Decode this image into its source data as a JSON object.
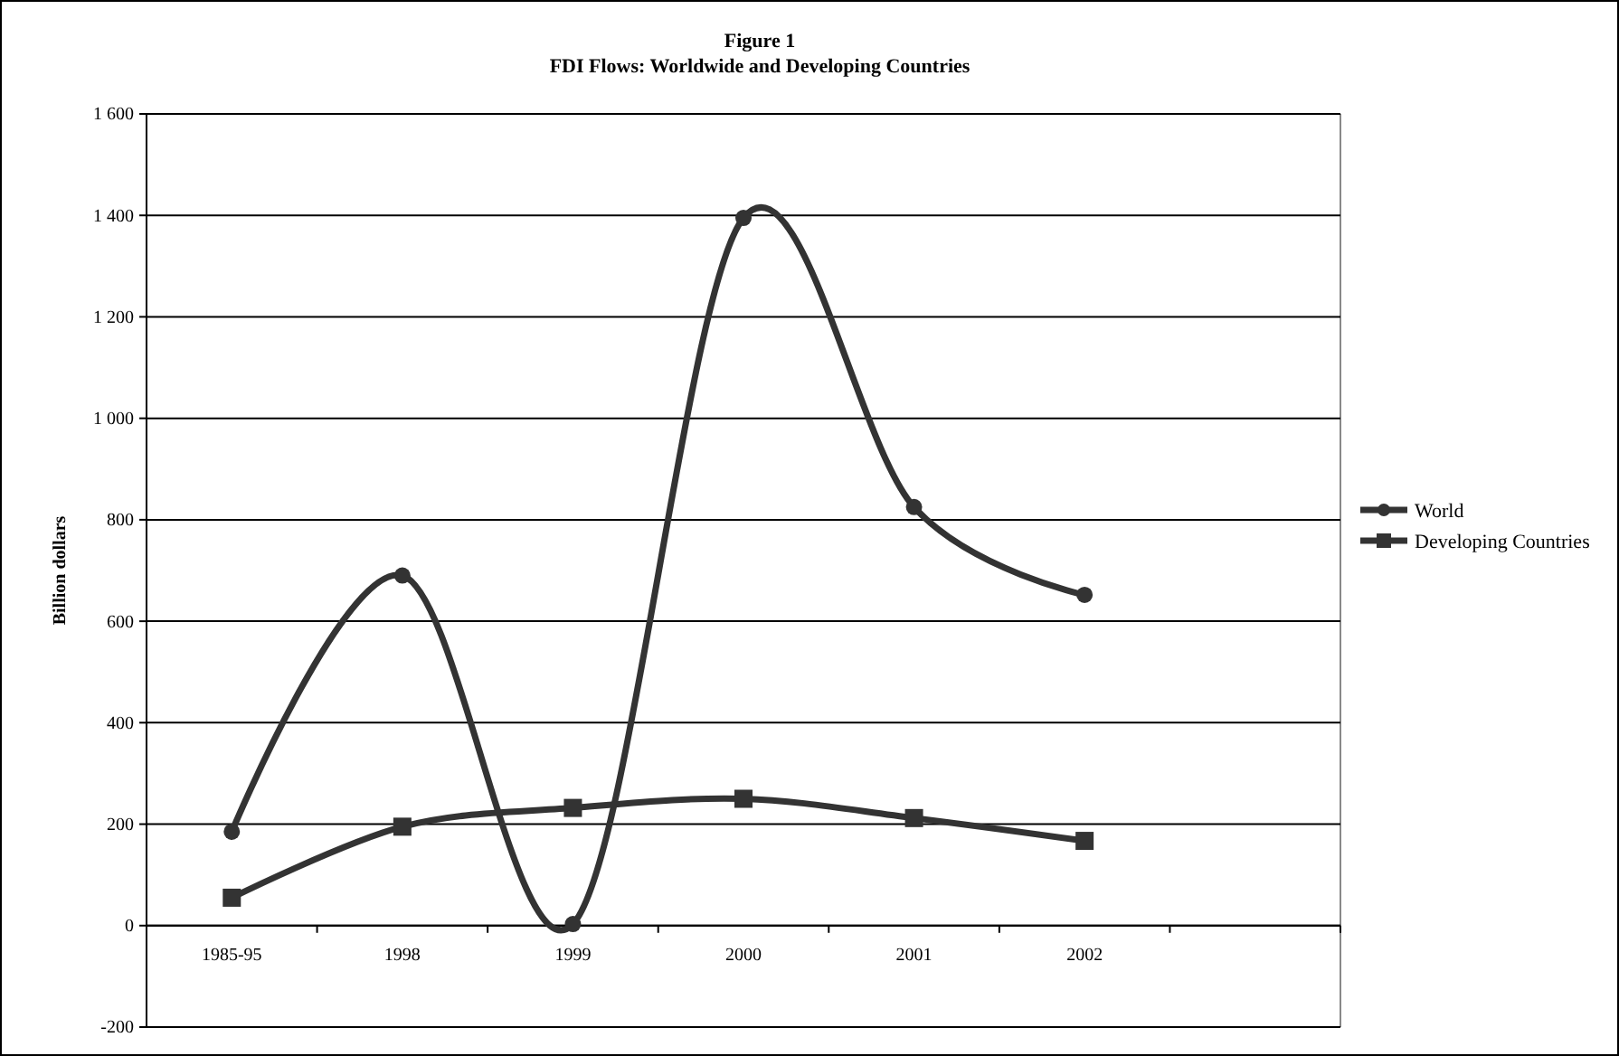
{
  "chart_data": {
    "type": "line",
    "title": "Figure 1",
    "subtitle": "FDI Flows: Worldwide and Developing Countries",
    "ylabel": "Billion dollars",
    "categories": [
      "1985-95",
      "1998",
      "1999",
      "2000",
      "2001",
      "2002",
      null
    ],
    "series": [
      {
        "name": "World",
        "color": "#333333",
        "marker": "circle",
        "values": [
          185,
          690,
          3,
          1395,
          825,
          652,
          null
        ]
      },
      {
        "name": "Developing Countries",
        "color": "#333333",
        "marker": "square",
        "values": [
          55,
          195,
          232,
          250,
          212,
          167,
          null
        ]
      }
    ],
    "ylim": [
      -200,
      1600
    ],
    "yticks": [
      -200,
      0,
      200,
      400,
      600,
      800,
      {
        "value": 1000,
        "label": "1 000"
      },
      {
        "value": 1200,
        "label": "1 200"
      },
      {
        "value": 1400,
        "label": "1 400"
      },
      {
        "value": 1600,
        "label": "1 600"
      }
    ],
    "grid": "y",
    "legend": "right",
    "line_style": "solid"
  }
}
